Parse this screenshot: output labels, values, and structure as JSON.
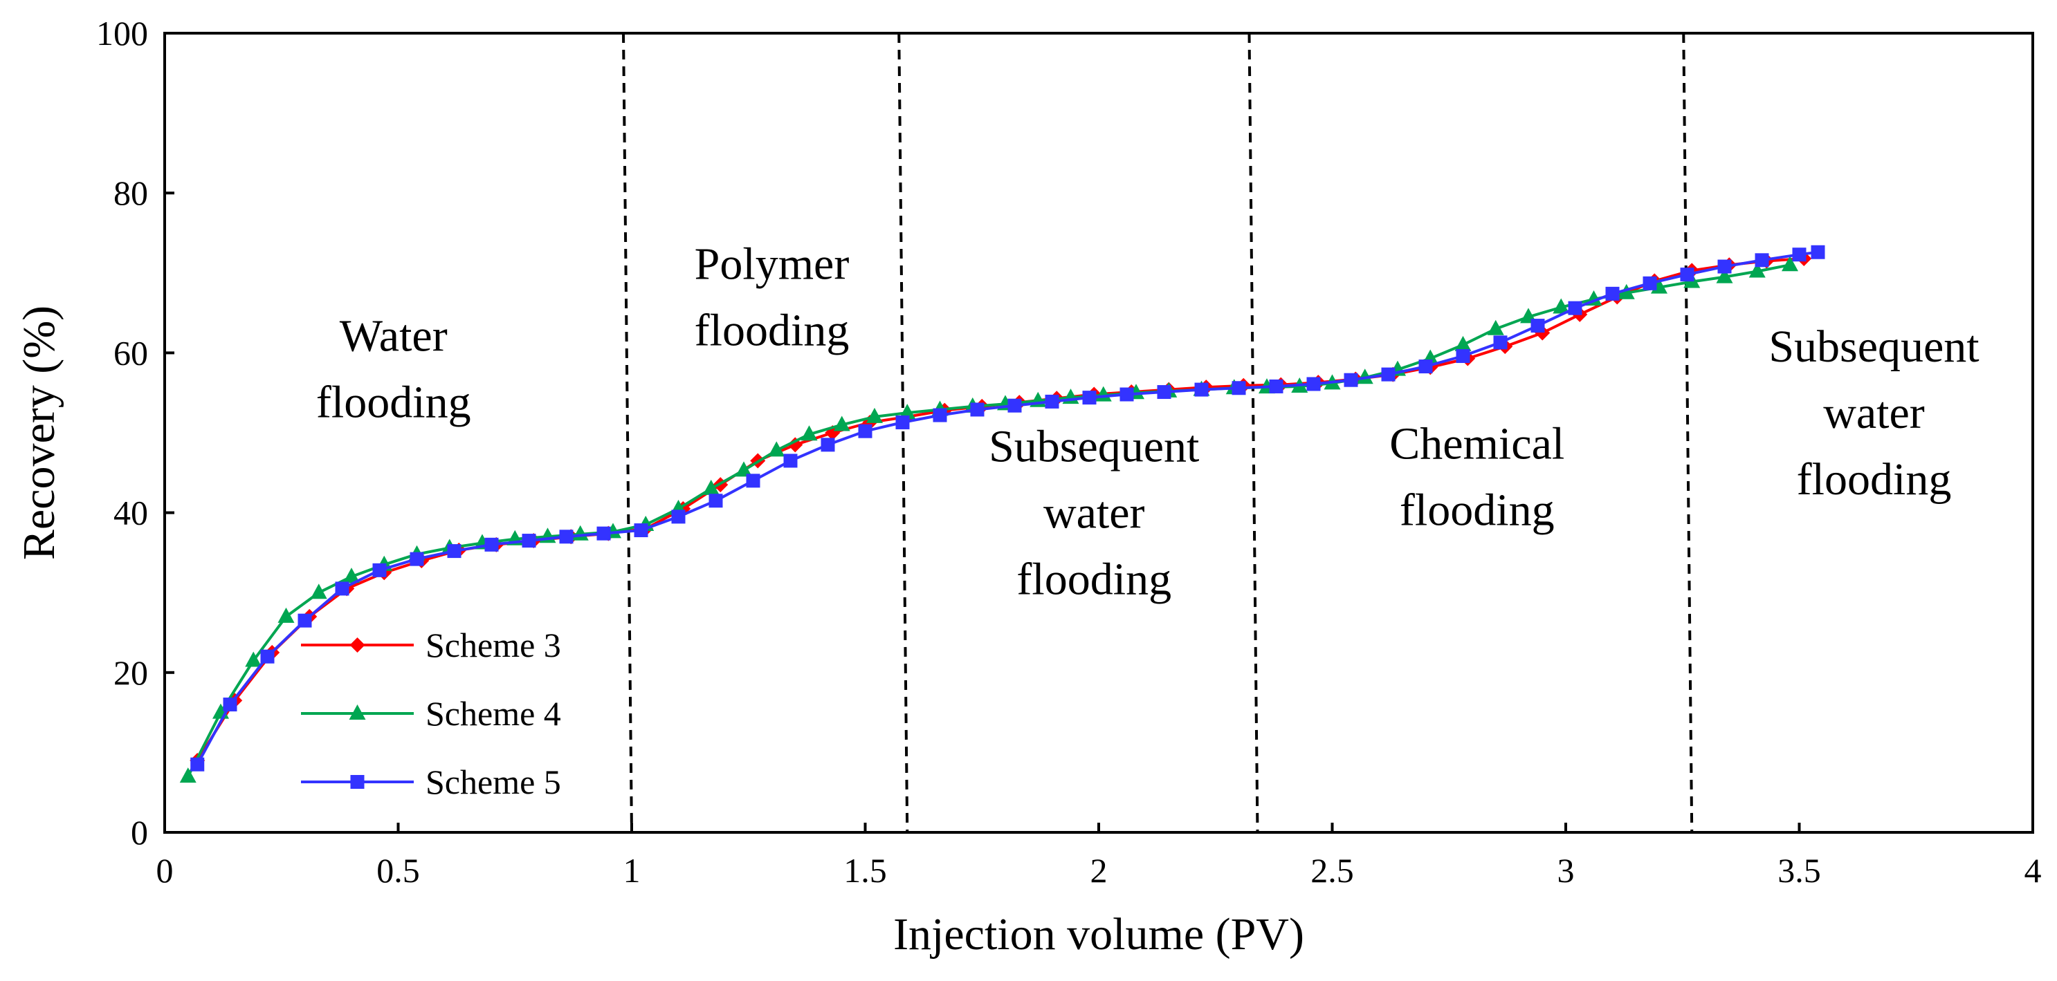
{
  "chart_data": {
    "type": "line",
    "xlabel": "Injection volume (PV)",
    "ylabel": "Recovery (%)",
    "xlim": [
      0,
      4
    ],
    "ylim": [
      0,
      100
    ],
    "x_ticks": [
      "0",
      "0.5",
      "1",
      "1.5",
      "2",
      "2.5",
      "3",
      "3.5",
      "4"
    ],
    "y_ticks": [
      "0",
      "20",
      "40",
      "60",
      "80",
      "100"
    ],
    "grid": false,
    "legend_position": "lower-left",
    "stage_boundaries": [
      1.0,
      1.59,
      2.34,
      3.27
    ],
    "regions": [
      {
        "id": "water-flooding",
        "lines": [
          "Water",
          "flooding"
        ],
        "x": 0.49,
        "y": 58
      },
      {
        "id": "polymer-flooding",
        "lines": [
          "Polymer",
          "flooding"
        ],
        "x": 1.3,
        "y": 67
      },
      {
        "id": "subsequent-water-flooding-1",
        "lines": [
          "Subsequent",
          "water",
          "flooding"
        ],
        "x": 1.99,
        "y": 40
      },
      {
        "id": "chemical-flooding",
        "lines": [
          "Chemical",
          "flooding"
        ],
        "x": 2.81,
        "y": 44.5
      },
      {
        "id": "subsequent-water-flooding-2",
        "lines": [
          "Subsequent",
          "water",
          "flooding"
        ],
        "x": 3.66,
        "y": 52.5
      }
    ],
    "series": [
      {
        "name": "Scheme 3",
        "color": "#ff0000",
        "marker": "diamond",
        "x": [
          0.07,
          0.15,
          0.23,
          0.31,
          0.39,
          0.47,
          0.55,
          0.63,
          0.71,
          0.79,
          0.87,
          0.95,
          1.03,
          1.11,
          1.19,
          1.27,
          1.35,
          1.43,
          1.51,
          1.59,
          1.67,
          1.75,
          1.83,
          1.91,
          1.99,
          2.07,
          2.15,
          2.23,
          2.31,
          2.39,
          2.47,
          2.55,
          2.63,
          2.71,
          2.79,
          2.87,
          2.95,
          3.03,
          3.11,
          3.19,
          3.27,
          3.35,
          3.43,
          3.51
        ],
        "values": [
          9.0,
          16.5,
          22.5,
          27.0,
          30.5,
          32.5,
          34.0,
          35.3,
          36.0,
          36.5,
          37.0,
          37.4,
          38.0,
          40.5,
          43.5,
          46.5,
          48.5,
          50.0,
          51.3,
          52.0,
          52.8,
          53.3,
          53.8,
          54.3,
          54.8,
          55.1,
          55.4,
          55.7,
          55.9,
          56.0,
          56.3,
          56.7,
          57.3,
          58.2,
          59.3,
          60.8,
          62.5,
          64.8,
          67.0,
          69.0,
          70.3,
          71.0,
          71.5,
          71.8
        ]
      },
      {
        "name": "Scheme 4",
        "color": "#00a651",
        "marker": "triangle",
        "x": [
          0.05,
          0.12,
          0.19,
          0.26,
          0.33,
          0.4,
          0.47,
          0.54,
          0.61,
          0.68,
          0.75,
          0.82,
          0.89,
          0.96,
          1.03,
          1.1,
          1.17,
          1.24,
          1.31,
          1.38,
          1.45,
          1.52,
          1.59,
          1.66,
          1.73,
          1.8,
          1.87,
          1.94,
          2.01,
          2.08,
          2.15,
          2.22,
          2.29,
          2.36,
          2.43,
          2.5,
          2.57,
          2.64,
          2.71,
          2.78,
          2.85,
          2.92,
          2.99,
          3.06,
          3.13,
          3.2,
          3.27,
          3.34,
          3.41,
          3.48
        ],
        "values": [
          7.0,
          15.0,
          21.5,
          27.0,
          30.0,
          32.0,
          33.5,
          34.8,
          35.6,
          36.2,
          36.7,
          37.0,
          37.3,
          37.6,
          38.5,
          40.5,
          43.0,
          45.3,
          47.8,
          49.8,
          51.0,
          52.0,
          52.5,
          52.9,
          53.3,
          53.6,
          54.0,
          54.4,
          54.7,
          55.0,
          55.2,
          55.4,
          55.6,
          55.7,
          55.8,
          56.2,
          56.9,
          57.9,
          59.3,
          61.0,
          63.0,
          64.5,
          65.7,
          66.7,
          67.5,
          68.2,
          68.9,
          69.5,
          70.2,
          71.0
        ]
      },
      {
        "name": "Scheme 5",
        "color": "#3333ff",
        "marker": "square",
        "x": [
          0.07,
          0.14,
          0.22,
          0.3,
          0.38,
          0.46,
          0.54,
          0.62,
          0.7,
          0.78,
          0.86,
          0.94,
          1.02,
          1.1,
          1.18,
          1.26,
          1.34,
          1.42,
          1.5,
          1.58,
          1.66,
          1.74,
          1.82,
          1.9,
          1.98,
          2.06,
          2.14,
          2.22,
          2.3,
          2.38,
          2.46,
          2.54,
          2.62,
          2.7,
          2.78,
          2.86,
          2.94,
          3.02,
          3.1,
          3.18,
          3.26,
          3.34,
          3.42,
          3.5,
          3.54
        ],
        "values": [
          8.5,
          16.0,
          22.0,
          26.5,
          30.5,
          32.8,
          34.2,
          35.2,
          36.0,
          36.5,
          37.0,
          37.4,
          37.8,
          39.5,
          41.5,
          44.0,
          46.5,
          48.5,
          50.2,
          51.3,
          52.2,
          52.9,
          53.4,
          53.9,
          54.4,
          54.8,
          55.1,
          55.4,
          55.6,
          55.8,
          56.1,
          56.6,
          57.3,
          58.3,
          59.6,
          61.3,
          63.4,
          65.6,
          67.4,
          68.7,
          69.8,
          70.8,
          71.6,
          72.3,
          72.6
        ]
      }
    ]
  }
}
